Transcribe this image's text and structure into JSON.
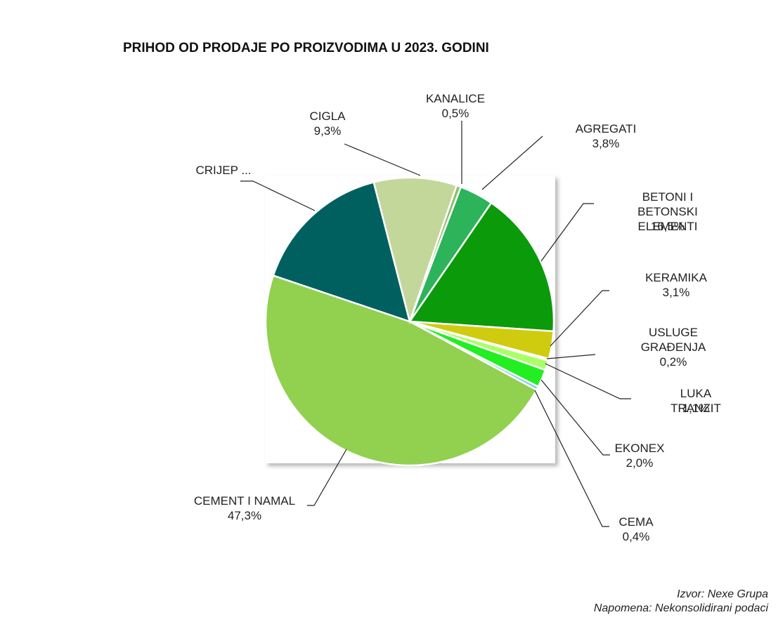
{
  "chart_data": {
    "type": "pie",
    "title": "PRIHOD OD PRODAJE PO PROIZVODIMA  U 2023. GODINI",
    "categories": [
      "KANALICE",
      "AGREGATI",
      "BETONI I BETONSKI\nELEMENTI",
      "KERAMIKA",
      "USLUGE\nGRAĐENJA",
      "LUKA TRANZIT",
      "EKONEX",
      "CEMA",
      "CEMENT  I NAMAL",
      "CRIJEP ...",
      "CIGLA"
    ],
    "values": [
      0.5,
      3.8,
      16.5,
      3.1,
      0.2,
      1.1,
      2.0,
      0.4,
      47.3,
      15.8,
      9.3
    ],
    "value_labels": [
      "0,5%",
      "3,8%",
      "16,5%",
      "3,1%",
      "0,2%",
      "1,1%",
      "2,0%",
      "0,4%",
      "47,3%",
      null,
      "9,3%"
    ],
    "colors": [
      "#8fbf6a",
      "#2db35a",
      "#0a9a0a",
      "#cfcc10",
      "#ccee66",
      "#aaff66",
      "#22ee22",
      "#88ccee",
      "#92d050",
      "#006060",
      "#c4d79b"
    ],
    "source": "Izvor: Nexe Grupa",
    "note": "Napomena: Nekonsolidirani podaci"
  }
}
